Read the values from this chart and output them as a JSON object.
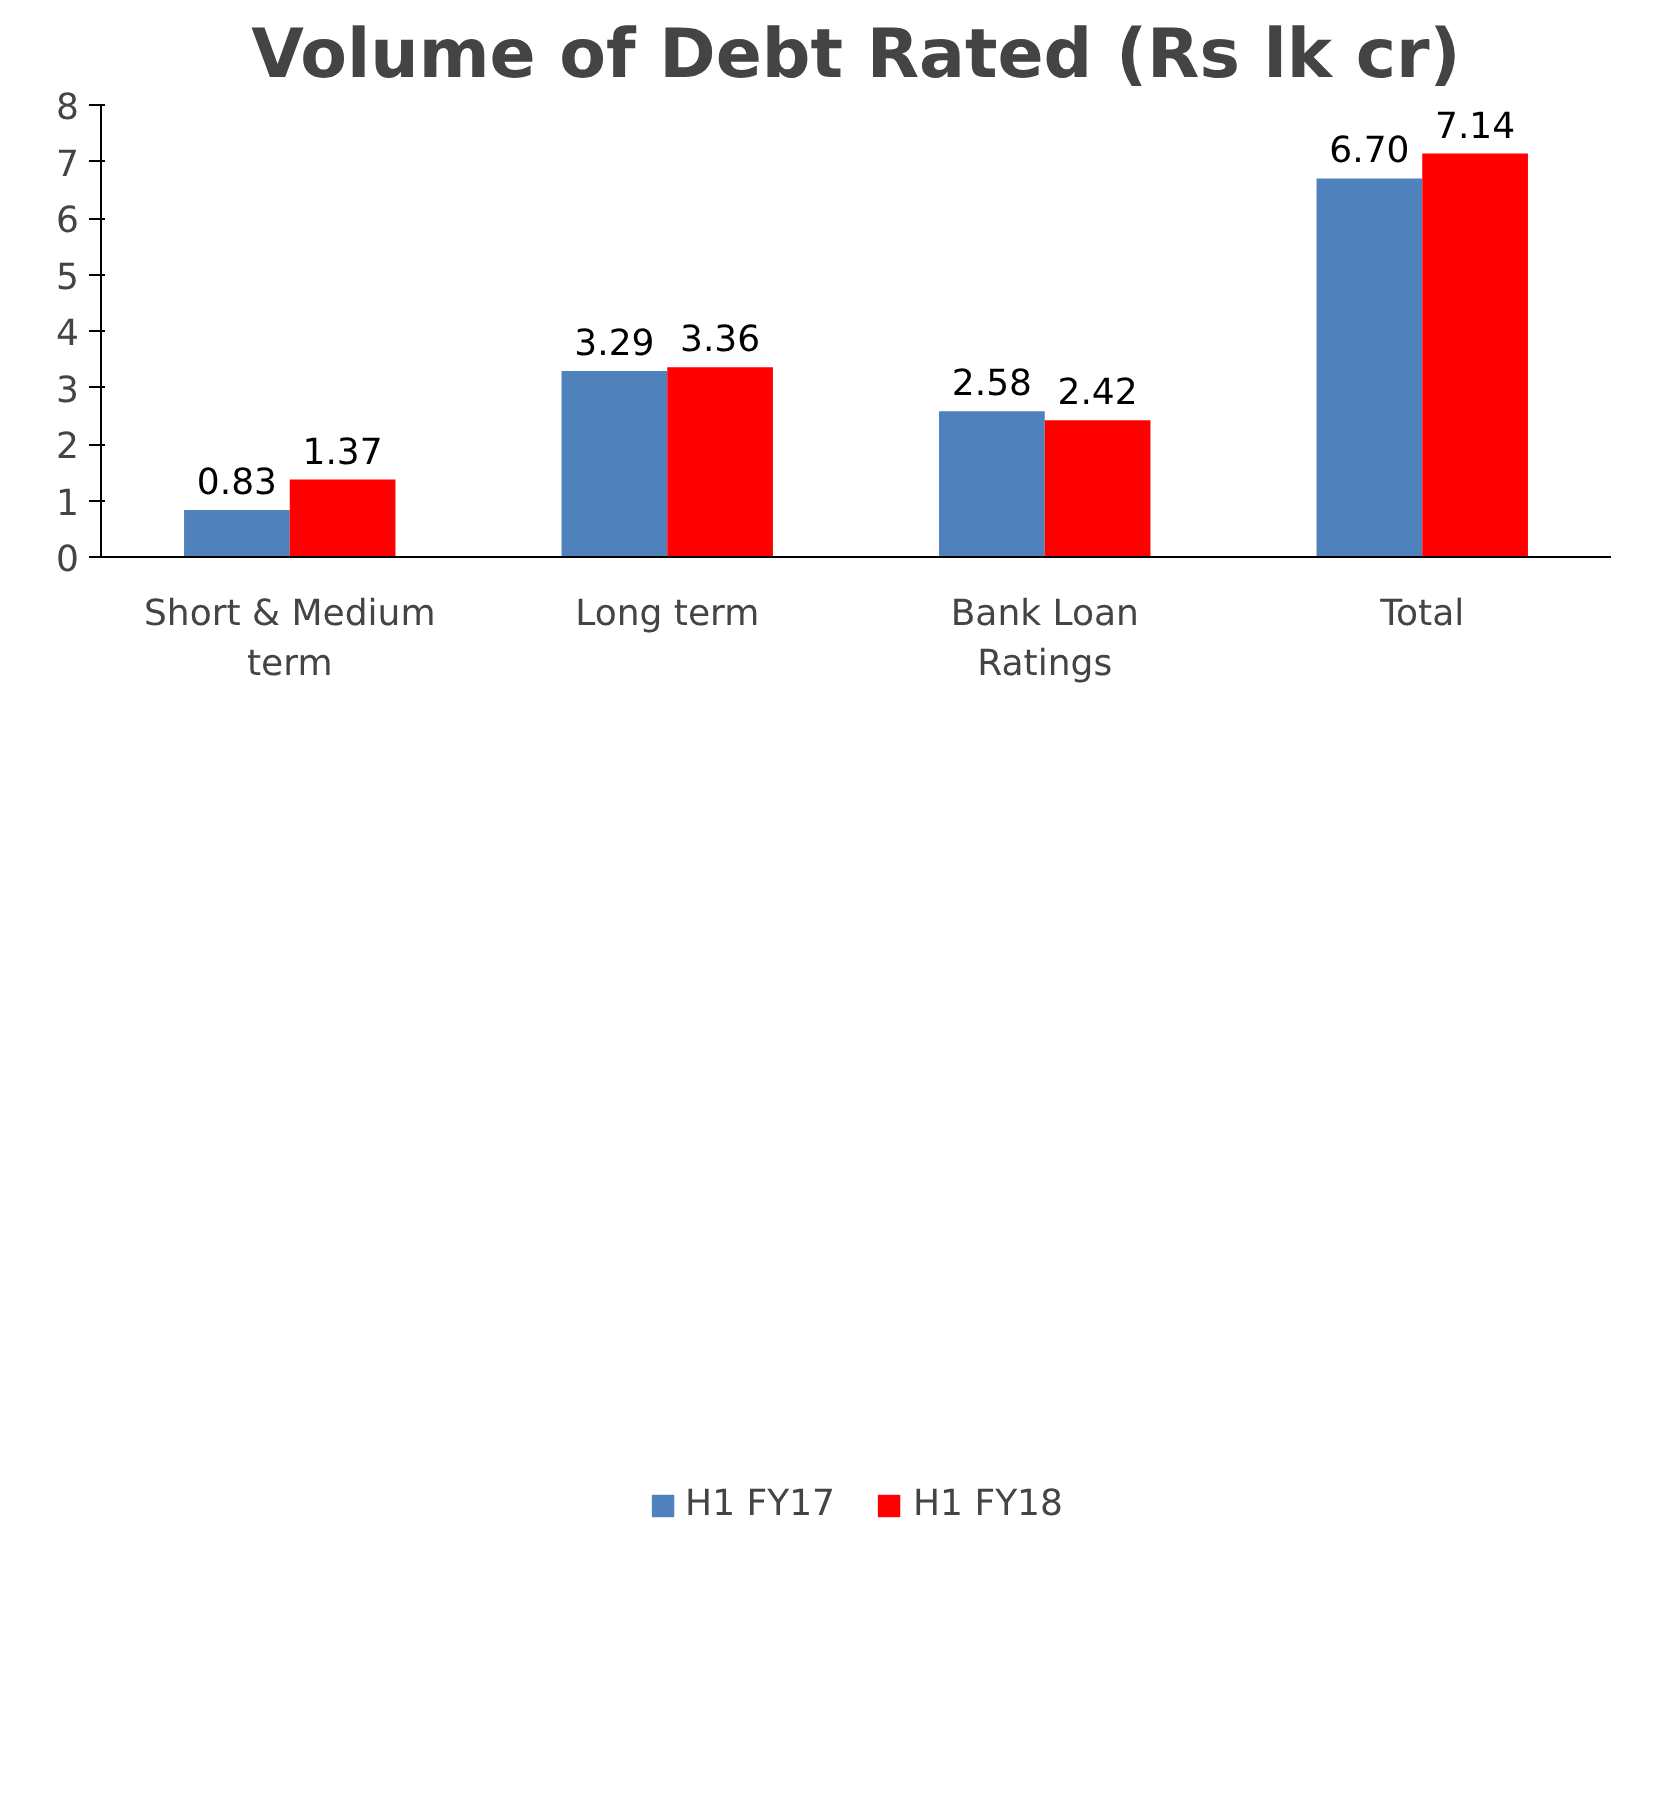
{
  "chart_data": {
    "type": "bar",
    "title": "Volume of Debt Rated (Rs lk cr)",
    "categories": [
      "Short & Medium term",
      "Long term",
      "Bank Loan Ratings",
      "Total"
    ],
    "series": [
      {
        "name": "H1 FY17",
        "color": "#4f81bd",
        "values": [
          0.83,
          3.29,
          2.58,
          6.7
        ],
        "value_labels": [
          "0.83",
          "3.29",
          "2.58",
          "6.70"
        ]
      },
      {
        "name": "H1 FY18",
        "color": "#ff0000",
        "values": [
          1.37,
          3.36,
          2.42,
          7.14
        ],
        "value_labels": [
          "1.37",
          "3.36",
          "2.42",
          "7.14"
        ]
      }
    ],
    "ylim": [
      0,
      8
    ],
    "yticks": [
      0,
      1,
      2,
      3,
      4,
      5,
      6,
      7,
      8
    ],
    "grid": false,
    "legend": "bottom"
  }
}
